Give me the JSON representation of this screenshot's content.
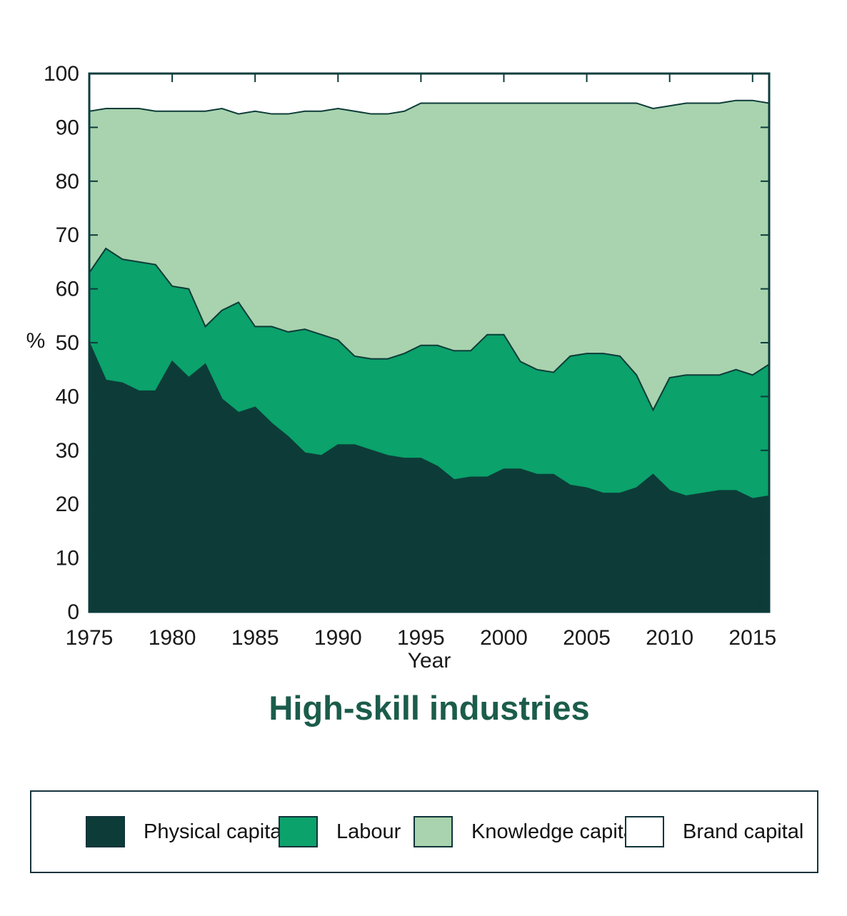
{
  "title": "High-skill industries",
  "axes": {
    "x_label": "Year",
    "y_label": "%"
  },
  "colors": {
    "axis": "#0d3c3c",
    "boundary_line": "#0d3c38",
    "tick_label": "#1a1a1a",
    "title": "#1b5c4b"
  },
  "chart_data": {
    "type": "area",
    "stacked": true,
    "title": "High-skill industries",
    "xlabel": "Year",
    "ylabel": "%",
    "xlim": [
      1975,
      2016
    ],
    "ylim": [
      0,
      100
    ],
    "x_ticks": [
      1975,
      1980,
      1985,
      1990,
      1995,
      2000,
      2005,
      2010,
      2015
    ],
    "y_ticks": [
      0,
      10,
      20,
      30,
      40,
      50,
      60,
      70,
      80,
      90,
      100
    ],
    "grid": false,
    "legend_position": "bottom",
    "x": [
      1975,
      1976,
      1977,
      1978,
      1979,
      1980,
      1981,
      1982,
      1983,
      1984,
      1985,
      1986,
      1987,
      1988,
      1989,
      1990,
      1991,
      1992,
      1993,
      1994,
      1995,
      1996,
      1997,
      1998,
      1999,
      2000,
      2001,
      2002,
      2003,
      2004,
      2005,
      2006,
      2007,
      2008,
      2009,
      2010,
      2011,
      2012,
      2013,
      2014,
      2015,
      2016
    ],
    "series": [
      {
        "id": "physical-capital",
        "name": "Physical capital",
        "color": "#0d3c38",
        "values": [
          50,
          43,
          42.5,
          41,
          41,
          46.5,
          43.5,
          46,
          39.5,
          37,
          38,
          35,
          32.5,
          29.5,
          29,
          31,
          31,
          30,
          29,
          28.5,
          28.5,
          27,
          24.5,
          25,
          25,
          26.5,
          26.5,
          25.5,
          25.5,
          23.5,
          23,
          22,
          22,
          23,
          25.5,
          22.5,
          21.5,
          22,
          22.5,
          22.5,
          21,
          21.5
        ]
      },
      {
        "id": "labour",
        "name": "Labour",
        "color": "#0ba26b",
        "values": [
          13,
          24.5,
          23,
          24,
          23.5,
          14,
          16.5,
          7,
          16.5,
          20.5,
          15,
          18,
          19.5,
          23,
          22.5,
          19.5,
          16.5,
          17,
          18,
          19.5,
          21,
          22.5,
          24,
          23.5,
          26.5,
          25,
          20,
          19.5,
          19,
          24,
          25,
          26,
          25.5,
          21,
          12,
          21,
          22.5,
          22,
          21.5,
          22.5,
          23,
          24.5
        ]
      },
      {
        "id": "knowledge-capital",
        "name": "Knowledge capital",
        "color": "#a8d3ae",
        "values": [
          30,
          26,
          28,
          28.5,
          28.5,
          32.5,
          33,
          40,
          37.5,
          35,
          40,
          39.5,
          40.5,
          40.5,
          41.5,
          43,
          45.5,
          45.5,
          45.5,
          45,
          45,
          45,
          46,
          46,
          43,
          43,
          48,
          49.5,
          50,
          47,
          46.5,
          46.5,
          47,
          50.5,
          56,
          50.5,
          50.5,
          50.5,
          50.5,
          50,
          51,
          48.5
        ]
      },
      {
        "id": "brand-capital",
        "name": "Brand capital",
        "color": "#ffffff",
        "values": [
          7,
          6.5,
          6.5,
          6.5,
          7,
          7,
          7,
          7,
          6.5,
          7.5,
          7,
          7.5,
          7.5,
          7,
          7,
          6.5,
          7,
          7.5,
          7.5,
          7,
          5.5,
          5.5,
          5.5,
          5.5,
          5.5,
          5.5,
          5.5,
          5.5,
          5.5,
          5.5,
          5.5,
          5.5,
          5.5,
          5.5,
          6.5,
          6,
          5.5,
          5.5,
          5.5,
          5,
          5,
          5.5
        ]
      }
    ]
  },
  "legend": {
    "items": [
      {
        "label": "Physical capital",
        "color": "#0d3c38"
      },
      {
        "label": "Labour",
        "color": "#0ba26b"
      },
      {
        "label": "Knowledge capital",
        "color": "#a8d3ae"
      },
      {
        "label": "Brand capital",
        "color": "#ffffff"
      }
    ]
  }
}
